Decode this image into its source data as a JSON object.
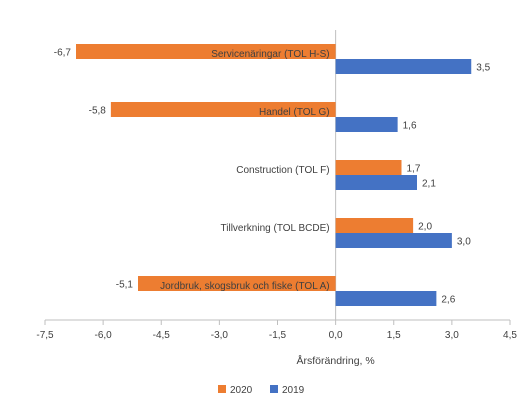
{
  "chart_data": {
    "type": "bar",
    "orientation": "horizontal",
    "categories": [
      "Servicenäringar (TOL H-S)",
      "Handel (TOL G)",
      "Construction (TOL F)",
      "Tillverkning (TOL BCDE)",
      "Jordbruk, skogsbruk och fiske  (TOL A)"
    ],
    "series": [
      {
        "name": "2020",
        "color": "#ED7D31",
        "values": [
          -6.7,
          -5.8,
          1.7,
          2.0,
          -5.1
        ],
        "labels": [
          "-6,7",
          "-5,8",
          "1,7",
          "2,0",
          "-5,1"
        ]
      },
      {
        "name": "2019",
        "color": "#4472C4",
        "values": [
          3.5,
          1.6,
          2.1,
          3.0,
          2.6
        ],
        "labels": [
          "3,5",
          "1,6",
          "2,1",
          "3,0",
          "2,6"
        ]
      }
    ],
    "xlim": [
      -7.5,
      4.5
    ],
    "xticks": [
      -7.5,
      -6.0,
      -4.5,
      -3.0,
      -1.5,
      0.0,
      1.5,
      3.0,
      4.5
    ],
    "xtick_labels": [
      "-7,5",
      "-6,0",
      "-4,5",
      "-3,0",
      "-1,5",
      "0,0",
      "1,5",
      "3,0",
      "4,5"
    ],
    "xlabel": "Årsförändring, %",
    "title": "",
    "ylabel": "",
    "grid": false,
    "legend_position": "bottom",
    "axis_color": "#bfbfbf"
  }
}
